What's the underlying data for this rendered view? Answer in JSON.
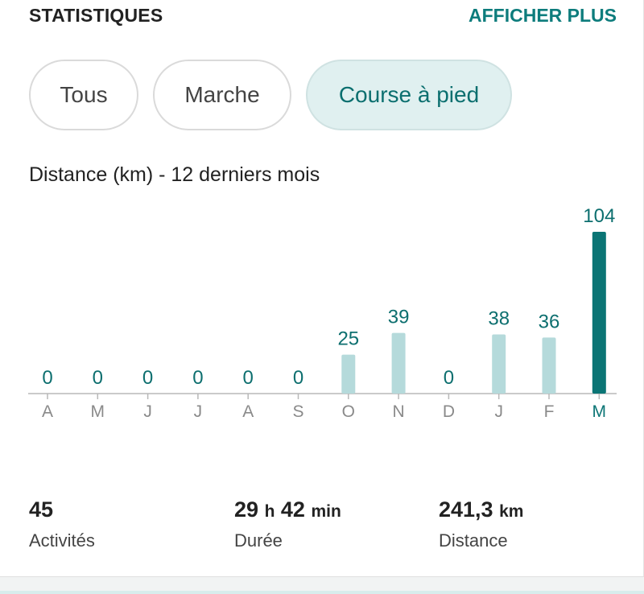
{
  "header": {
    "title": "STATISTIQUES",
    "more_label": "AFFICHER PLUS"
  },
  "filters": [
    {
      "label": "Tous",
      "selected": false
    },
    {
      "label": "Marche",
      "selected": false
    },
    {
      "label": "Course à pied",
      "selected": true
    }
  ],
  "chart_title": "Distance (km) - 12 derniers mois",
  "chart_data": {
    "type": "bar",
    "categories": [
      "A",
      "M",
      "J",
      "J",
      "A",
      "S",
      "O",
      "N",
      "D",
      "J",
      "F",
      "M"
    ],
    "values": [
      0,
      0,
      0,
      0,
      0,
      0,
      25,
      39,
      0,
      38,
      36,
      104
    ],
    "highlight_index": 11,
    "ylim": [
      0,
      104
    ],
    "colors": {
      "bar": "#b5dadb",
      "highlight": "#0b7575",
      "label": "#0d6f6f",
      "axis": "#b8b8b8",
      "tick_label": "#8a8a8a"
    }
  },
  "stats": [
    {
      "value": "45",
      "unit": "",
      "label": "Activités"
    },
    {
      "value_h": "29",
      "unit_h": "h",
      "value_m": "42",
      "unit_m": "min",
      "label": "Durée"
    },
    {
      "value": "241,3",
      "unit": "km",
      "label": "Distance"
    }
  ]
}
